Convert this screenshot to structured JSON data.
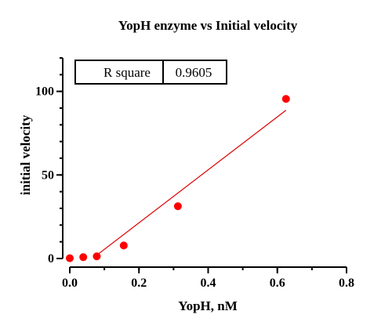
{
  "colors": {
    "series": "#ff0000",
    "fit_line": "#dd0000",
    "axis": "#000000"
  },
  "chart_data": {
    "type": "scatter",
    "title": "YopH enzyme vs Initial velocity",
    "xlabel": "YopH, nM",
    "ylabel": "initial velocity",
    "xlim": [
      0,
      0.8
    ],
    "ylim": [
      0,
      120
    ],
    "x_ticks": [
      0,
      0.2,
      0.4,
      0.6,
      0.8
    ],
    "x_tick_labels": [
      "0.0",
      "0.2",
      "0.4",
      "0.6",
      "0.8"
    ],
    "y_ticks": [
      0,
      50,
      100
    ],
    "y_tick_labels": [
      "0",
      "50",
      "100"
    ],
    "y_minor_step": 10,
    "x_minor_step": 0.1,
    "grid": false,
    "legend": "none",
    "series": [
      {
        "x": [
          0.0,
          0.039,
          0.078,
          0.156,
          0.3125,
          0.625
        ],
        "y": [
          0.2,
          0.8,
          1.3,
          7.8,
          31.3,
          95.5
        ]
      }
    ],
    "fit_line": {
      "x": [
        0.078,
        0.625
      ],
      "y": [
        2.0,
        88.7
      ]
    },
    "r_square": {
      "label": "R square",
      "value": "0.9605"
    }
  }
}
